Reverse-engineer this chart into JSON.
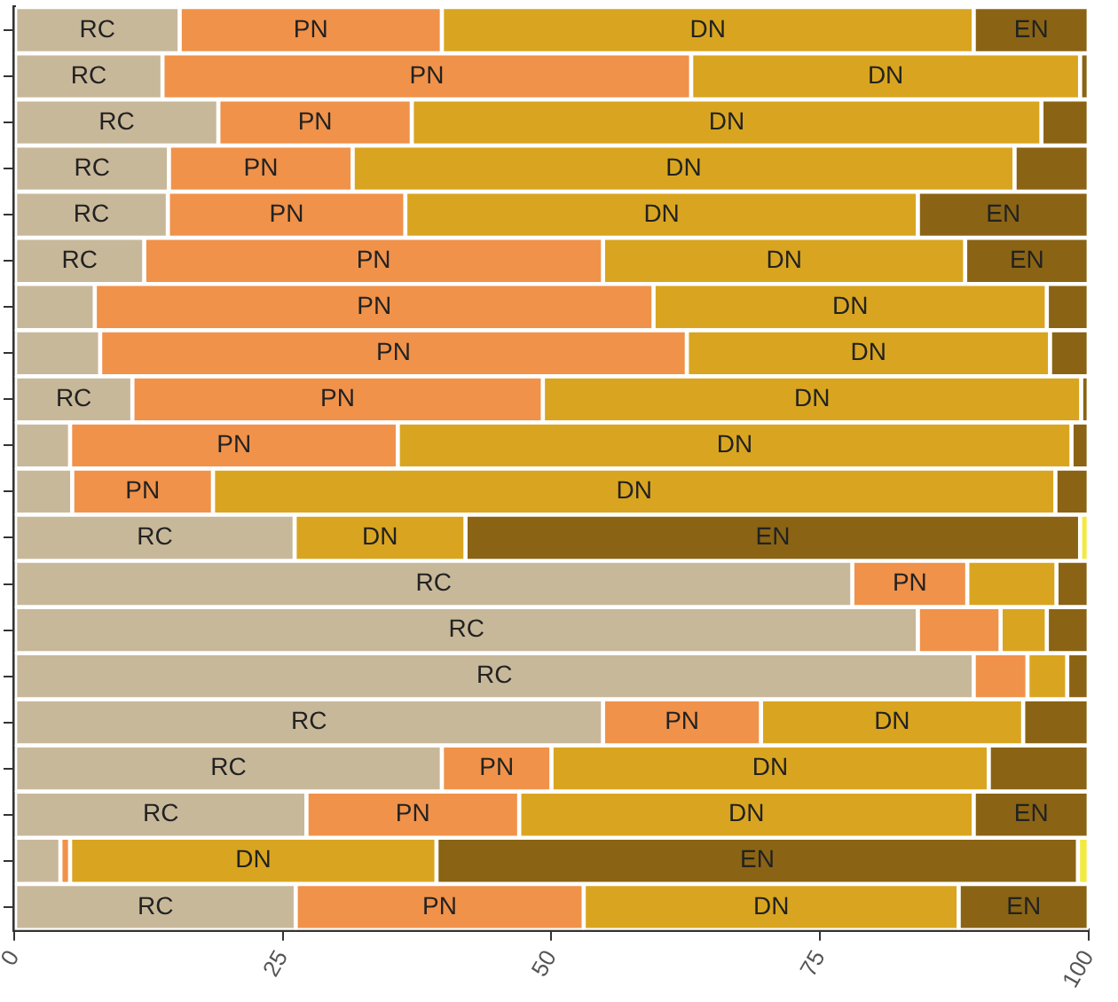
{
  "chart_data": {
    "type": "bar",
    "orientation": "horizontal",
    "stacked": true,
    "legend": false,
    "grid": false,
    "tick_labels": "x",
    "categories": [
      null,
      null,
      null,
      null,
      null,
      null,
      null,
      null,
      null,
      null,
      null,
      null,
      null,
      null,
      null,
      null,
      null,
      null,
      null,
      null
    ],
    "xlim": [
      0,
      100
    ],
    "xticks": [
      0,
      25,
      50,
      75,
      100
    ],
    "series": [
      {
        "name": "RC",
        "color": "#c8b89a",
        "values": [
          15.4,
          13.8,
          19,
          14.4,
          14.3,
          12.1,
          7.5,
          8,
          11,
          5.2,
          5.4,
          26.1,
          78,
          84.1,
          89.3,
          54.8,
          39.8,
          27.2,
          4.3,
          26.2
        ]
      },
      {
        "name": "PN",
        "color": "#f0924a",
        "values": [
          24.4,
          49.2,
          18,
          17.1,
          22.1,
          42.7,
          52,
          54.6,
          38.2,
          30.5,
          13.1,
          0,
          10.7,
          7.7,
          5,
          14.7,
          10.2,
          19.8,
          0.9,
          26.8
        ]
      },
      {
        "name": "DN",
        "color": "#d9a520",
        "values": [
          49.5,
          36.2,
          58.6,
          61.6,
          47.7,
          33.7,
          36.6,
          33.8,
          50.1,
          62.7,
          78.4,
          15.9,
          8.3,
          4.3,
          3.7,
          24.4,
          40.7,
          42.3,
          34.1,
          34.9
        ]
      },
      {
        "name": "EN",
        "color": "#8a6414",
        "values": [
          10.7,
          0.8,
          4.4,
          6.9,
          15.9,
          11.5,
          3.9,
          3.6,
          0.7,
          1.6,
          3.1,
          57.2,
          3,
          3.9,
          2,
          6.1,
          9.3,
          10.7,
          59.7,
          12.1
        ]
      },
      {
        "color": "#f2ea40",
        "values": [
          0,
          0,
          0,
          0,
          0,
          0,
          0,
          0,
          0,
          0,
          0,
          0.8,
          0,
          0,
          0,
          0,
          0,
          0,
          1,
          0
        ]
      }
    ]
  }
}
